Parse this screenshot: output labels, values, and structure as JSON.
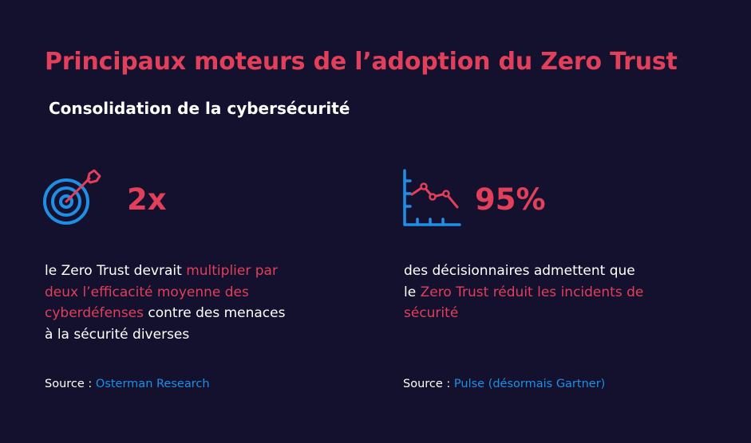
{
  "title": "Principaux moteurs de l’adoption du Zero Trust",
  "subtitle": "Consolidation de la cybersécurité",
  "colors": {
    "background": "#13112e",
    "accent": "#e23f5a",
    "icon_blue": "#1f8fe6",
    "text": "#ffffff"
  },
  "stats": [
    {
      "icon": "target-icon",
      "value": "2x",
      "description": {
        "line1_plain": "le Zero Trust devrait ",
        "line1_hl": "multiplier par",
        "line2_hl": "deux l’efficacité moyenne des",
        "line3_hl": "cyberdéfenses",
        "line3_plain": " contre des menaces",
        "line4_plain": "à la sécurité diverses"
      },
      "source_label": "Source : ",
      "source_name": "Osterman Research"
    },
    {
      "icon": "line-chart-down-icon",
      "value": "95%",
      "description": {
        "line1_plain": "des décisionnaires admettent que",
        "line2_plain": "le ",
        "line2_hl": "Zero Trust réduit les incidents de",
        "line3_hl": "sécurité"
      },
      "source_label": "Source : ",
      "source_name": "Pulse (désormais Gartner)"
    }
  ]
}
